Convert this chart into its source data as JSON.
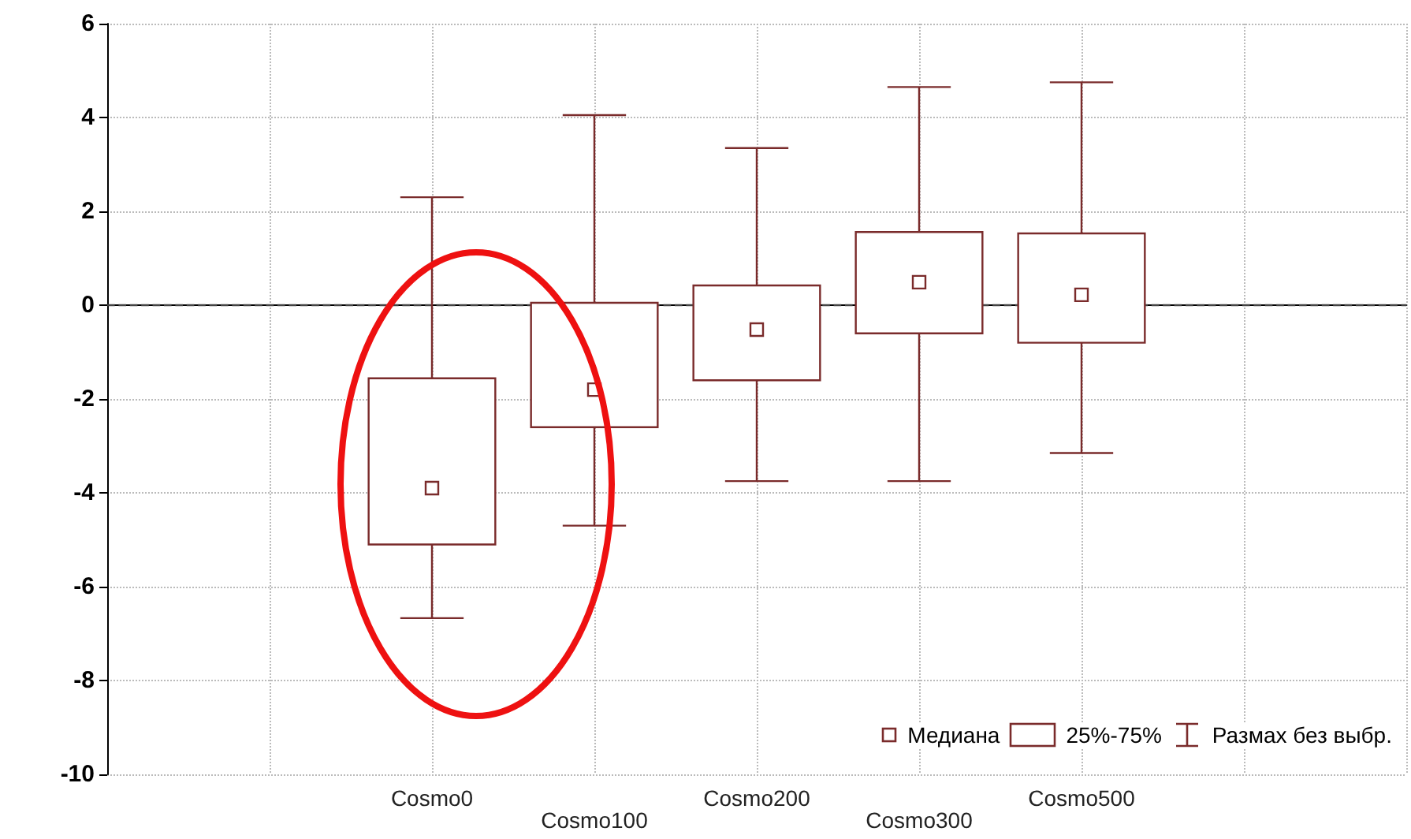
{
  "chart_data": {
    "type": "box",
    "categories": [
      null,
      null,
      "Cosmo0",
      "Cosmo100",
      "Cosmo200",
      "Cosmo300",
      "Cosmo500",
      null,
      null
    ],
    "series": [
      {
        "color": "#7a2b2b",
        "boxes": [
          null,
          null,
          {
            "low": -6.67,
            "q1": -5.1,
            "median": -3.9,
            "q3": -1.56,
            "high": 2.3
          },
          {
            "low": -4.7,
            "q1": -2.6,
            "median": -1.8,
            "q3": 0.05,
            "high": 4.05
          },
          {
            "low": -3.75,
            "q1": -1.6,
            "median": -0.52,
            "q3": 0.42,
            "high": 3.35
          },
          {
            "low": -3.75,
            "q1": -0.6,
            "median": 0.49,
            "q3": 1.56,
            "high": 4.65
          },
          {
            "low": -3.15,
            "q1": -0.8,
            "median": 0.22,
            "q3": 1.53,
            "high": 4.75
          },
          null,
          null
        ]
      }
    ],
    "ylim": [
      -10,
      6
    ],
    "yticks": [
      -10,
      -8,
      -6,
      -4,
      -2,
      0,
      2,
      4,
      6
    ],
    "grid": true,
    "marker": "square",
    "ref_lines": [
      {
        "axis": "y",
        "value": 0,
        "line_style": "dashed",
        "color": "#444444"
      }
    ],
    "annotations": [
      "Медиана",
      "25%-75%",
      "Размах без выбр."
    ]
  }
}
